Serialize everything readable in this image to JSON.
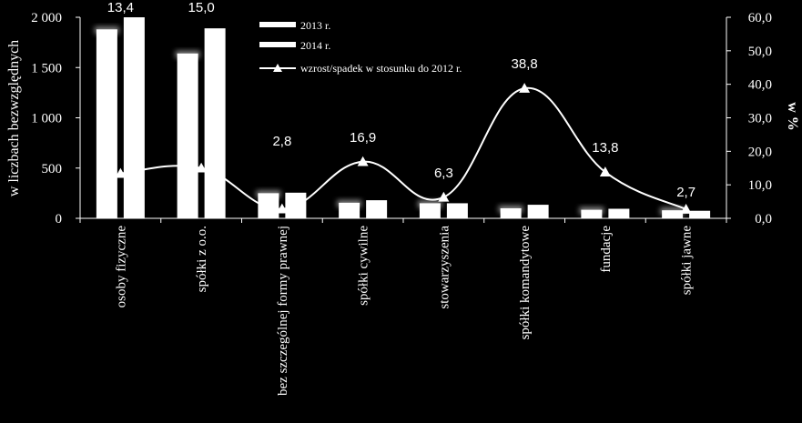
{
  "chart_data": {
    "type": "bar",
    "categories": [
      "osoby fizyczne",
      "spółki z o.o.",
      "bez szczególnej formy prawnej",
      "spółki cywilne",
      "stowarzyszenia",
      "spółki komandytowe",
      "fundacje",
      "spółki jawne"
    ],
    "series": [
      {
        "name": "2013 r.",
        "type": "bar",
        "axis": "left",
        "values": [
          1880,
          1640,
          250,
          155,
          150,
          100,
          85,
          80
        ]
      },
      {
        "name": "2014 r.",
        "type": "bar",
        "axis": "left",
        "values": [
          2000,
          1890,
          255,
          180,
          150,
          135,
          95,
          75
        ]
      },
      {
        "name": "wzrost/spadek w stosunku do 2012 r.",
        "type": "line",
        "axis": "right",
        "values": [
          13.4,
          15.0,
          2.8,
          16.9,
          6.3,
          38.8,
          13.8,
          2.7
        ],
        "labels": [
          "13,4",
          "15,0",
          "2,8",
          "16,9",
          "6,3",
          "38,8",
          "13,8",
          "2,7"
        ]
      }
    ],
    "ylabel": "w liczbach  bezwzględnych",
    "y2label": "w %",
    "ylim": [
      0,
      2000
    ],
    "y2lim": [
      0,
      60
    ],
    "yticks": [
      "0",
      "500",
      "1 000",
      "1 500",
      "2 000"
    ],
    "y2ticks": [
      "0,0",
      "10,0",
      "20,0",
      "30,0",
      "40,0",
      "50,0",
      "60,0"
    ],
    "legend_position": "top-center",
    "colors": {
      "background": "#000000",
      "foreground": "#ffffff"
    }
  }
}
